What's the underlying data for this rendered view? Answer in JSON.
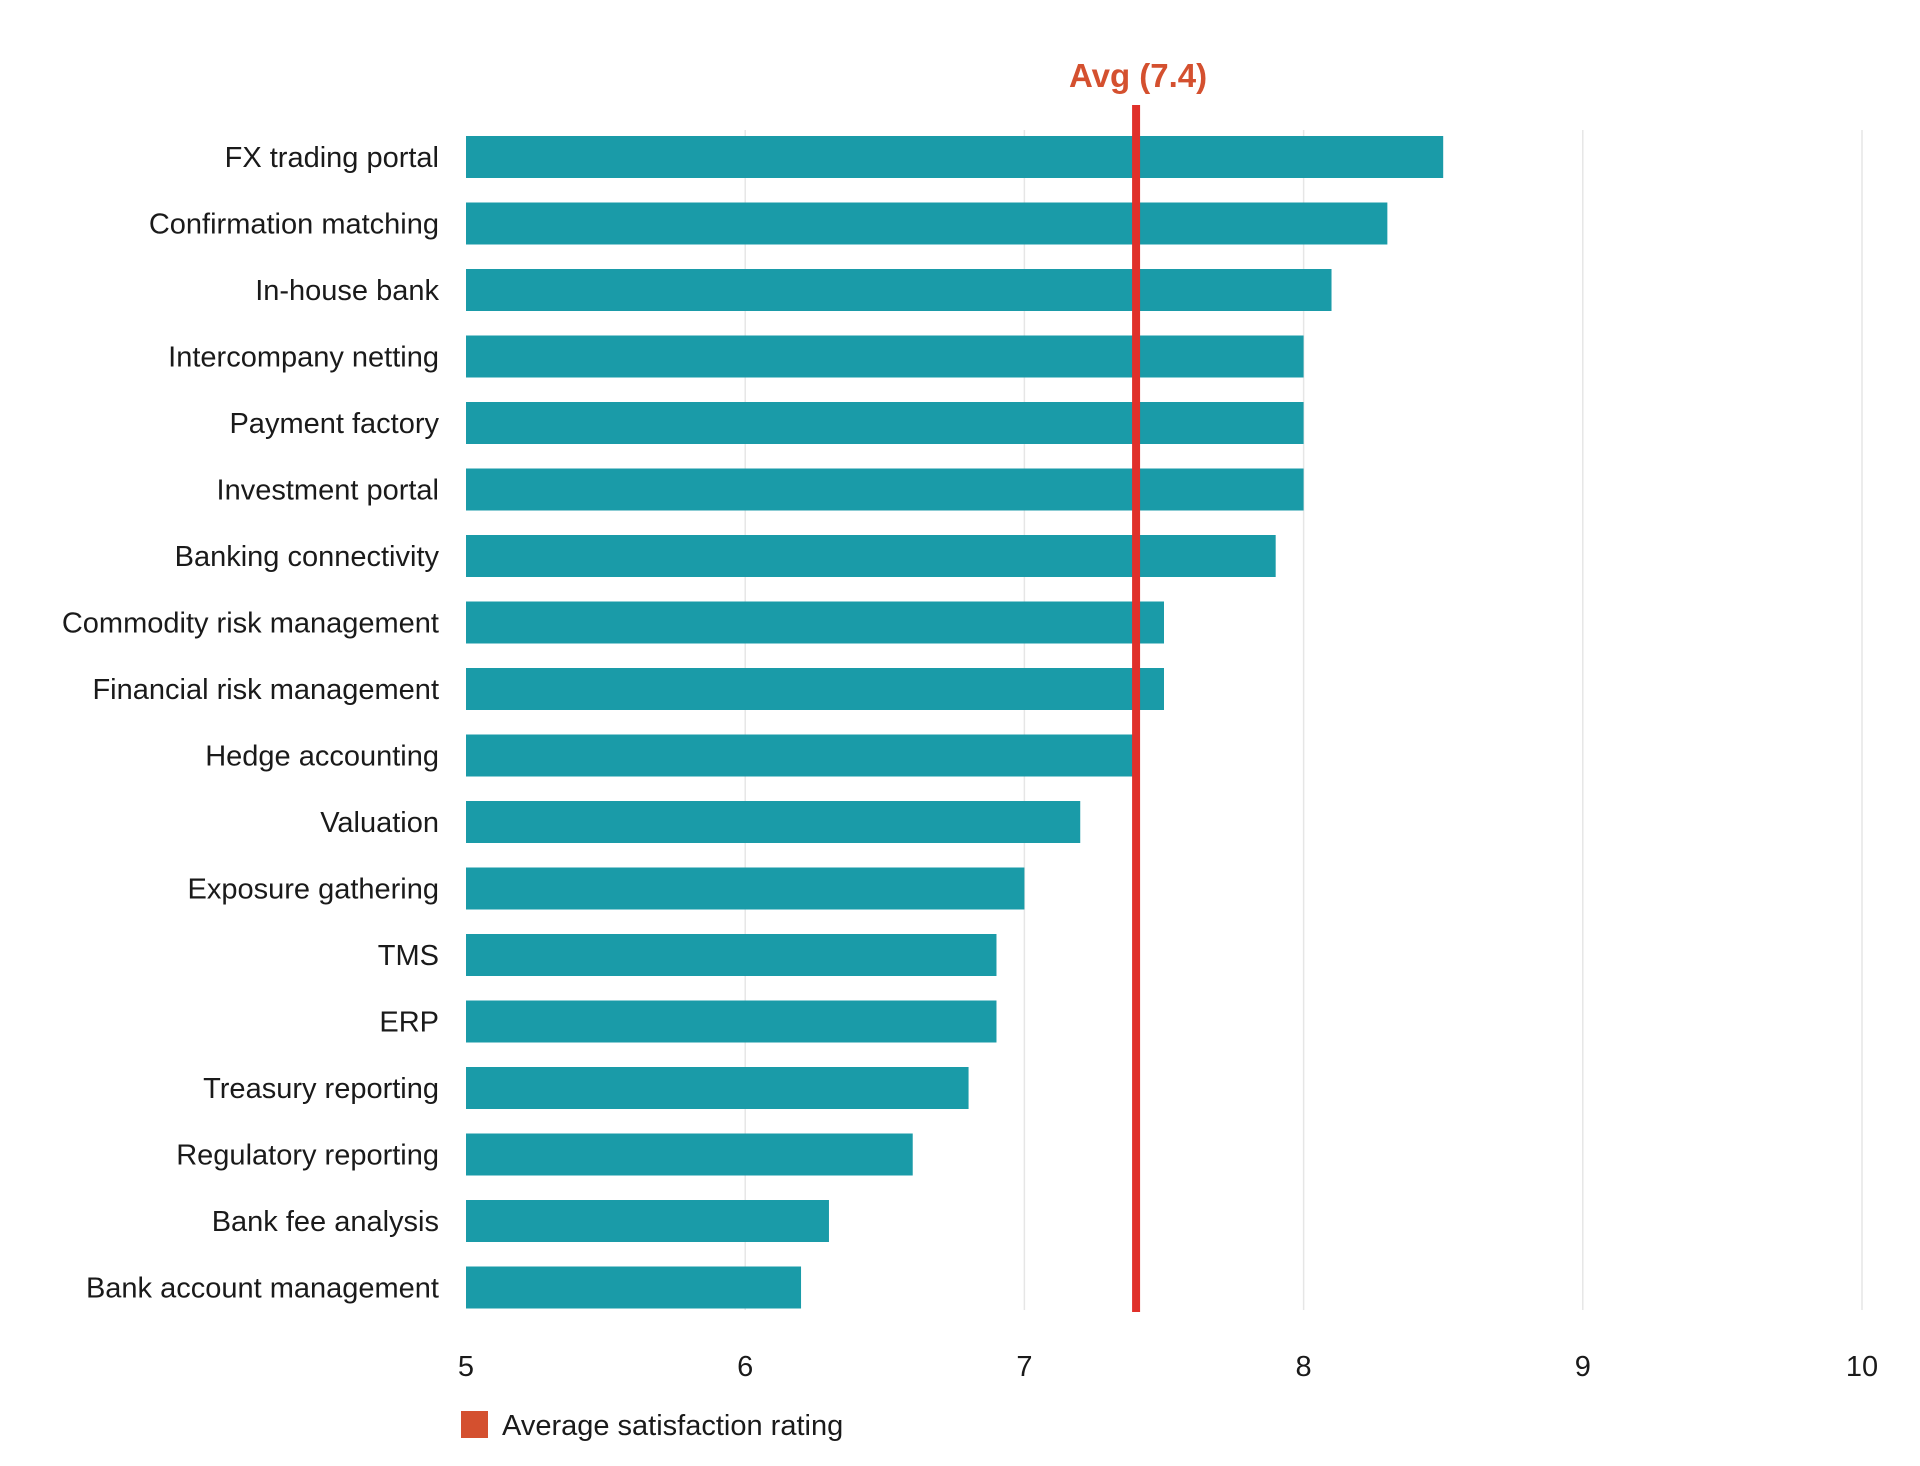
{
  "chart_data": {
    "type": "bar",
    "orientation": "horizontal",
    "categories": [
      "FX trading portal",
      "Confirmation matching",
      "In-house bank",
      "Intercompany netting",
      "Payment factory",
      "Investment portal",
      "Banking connectivity",
      "Commodity risk management",
      "Financial risk management",
      "Hedge accounting",
      "Valuation",
      "Exposure gathering",
      "TMS",
      "ERP",
      "Treasury reporting",
      "Regulatory reporting",
      "Bank fee analysis",
      "Bank account management"
    ],
    "series": [
      {
        "name": "Average satisfaction rating",
        "values": [
          8.5,
          8.3,
          8.1,
          8.0,
          8.0,
          8.0,
          7.9,
          7.5,
          7.5,
          7.4,
          7.2,
          7.0,
          6.9,
          6.9,
          6.8,
          6.6,
          6.3,
          6.2
        ]
      }
    ],
    "title": "",
    "xlabel": "",
    "ylabel": "",
    "xlim": [
      5,
      10
    ],
    "x_ticks": [
      "5",
      "6",
      "7",
      "8",
      "9",
      "10"
    ],
    "grid": true,
    "legend_position": "bottom-left",
    "reference_line": {
      "value": 7.4,
      "label": "Avg (7.4)"
    },
    "colors": {
      "bar": "#1a9ba8",
      "avg_line": "#e0302a",
      "avg_label": "#d4502f",
      "legend_swatch": "#d4502f",
      "grid": "#e6e6e6"
    }
  }
}
